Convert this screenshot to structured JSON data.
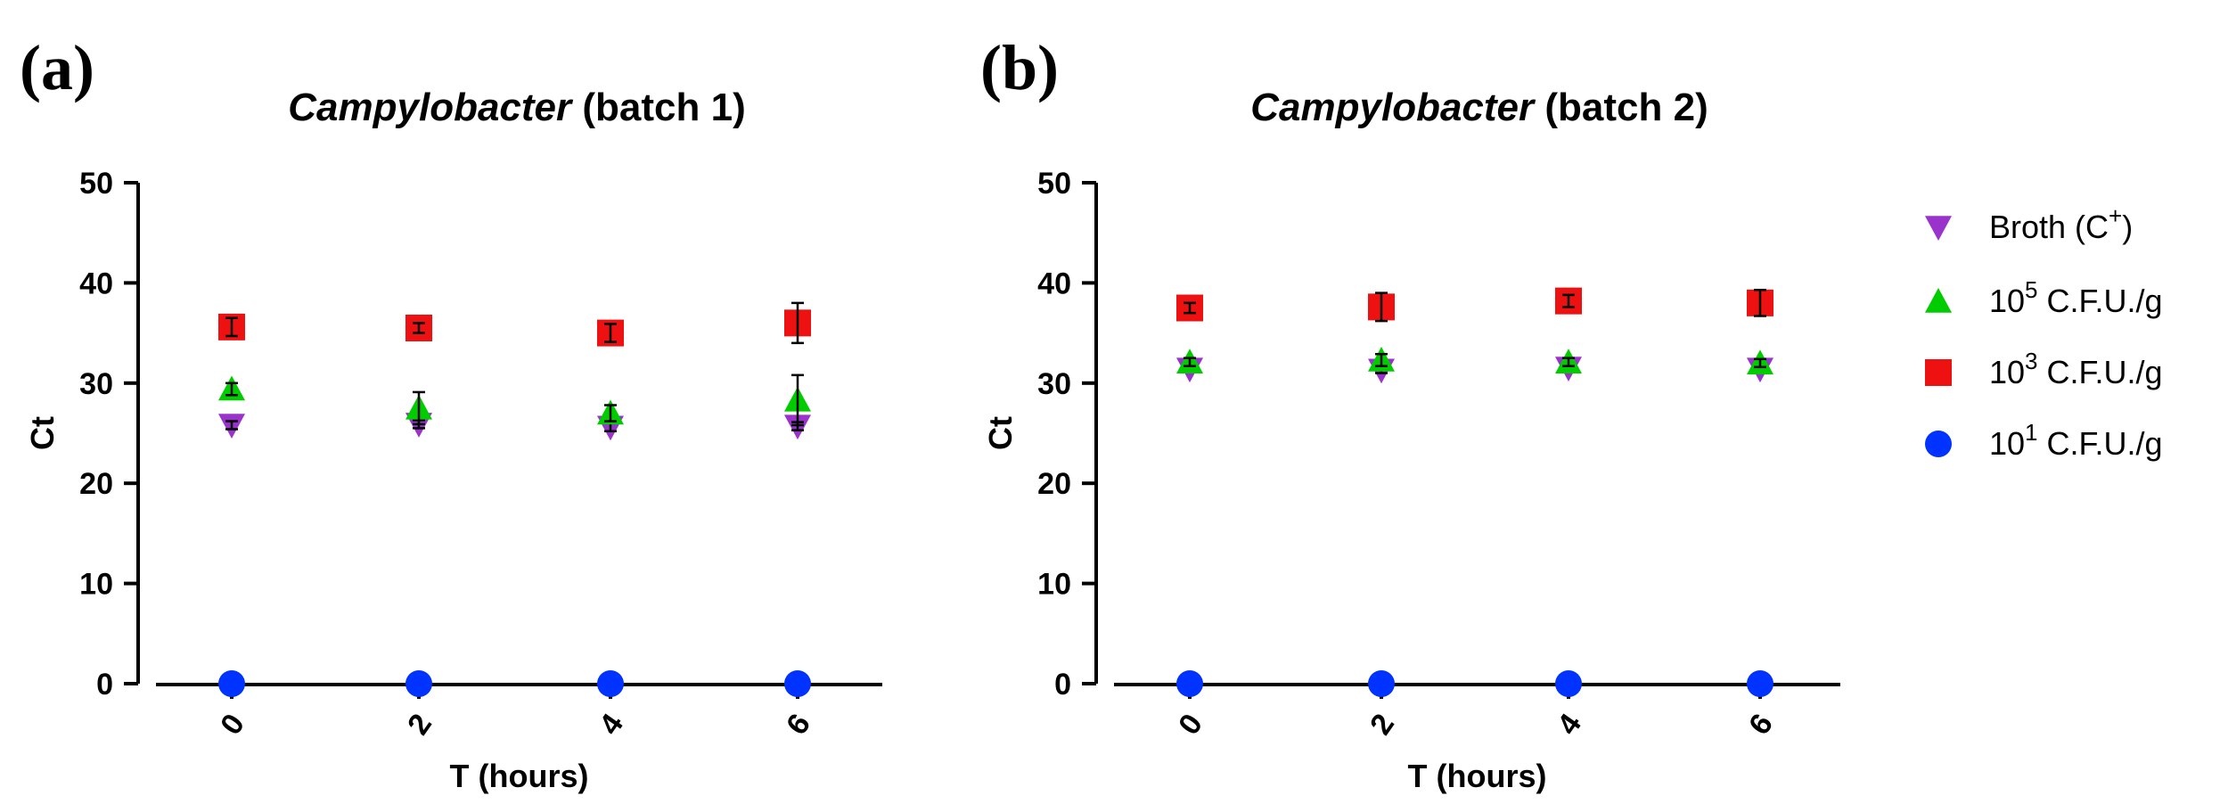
{
  "figure": {
    "legend": [
      {
        "label": "Broth (C",
        "sup": "+",
        "suffix": ")",
        "sup_first": false,
        "color": "#9933CC",
        "marker": "triangle-down",
        "key": "broth"
      },
      {
        "label": "10",
        "sup": "5",
        "suffix": " C.F.U./g",
        "sup_first": false,
        "color": "#00CC00",
        "marker": "triangle-up",
        "key": "cfu5"
      },
      {
        "label": "10",
        "sup": "3",
        "suffix": " C.F.U./g",
        "sup_first": false,
        "color": "#EE1111",
        "marker": "square",
        "key": "cfu3"
      },
      {
        "label": "10",
        "sup": "1",
        "suffix": " C.F.U./g",
        "sup_first": false,
        "color": "#0033FF",
        "marker": "circle",
        "key": "cfu1"
      }
    ]
  },
  "chart_data": [
    {
      "type": "scatter",
      "panel_label": "(a)",
      "title_italic": "Campylobacter",
      "title_rest": " (batch 1)",
      "xlabel": "T (hours)",
      "ylabel": "Ct",
      "ylim": [
        0,
        50
      ],
      "yticks": [
        0,
        10,
        20,
        30,
        40,
        50
      ],
      "categories": [
        "0",
        "2",
        "4",
        "6"
      ],
      "series": [
        {
          "key": "broth",
          "name": "Broth (C+)",
          "values": [
            25.8,
            25.9,
            25.6,
            25.7
          ],
          "errors": [
            0.4,
            0.4,
            0.4,
            0.4
          ]
        },
        {
          "key": "cfu5",
          "name": "10^5 C.F.U./g",
          "values": [
            29.4,
            27.5,
            27.0,
            28.3
          ],
          "errors": [
            0.6,
            1.6,
            0.8,
            2.5
          ]
        },
        {
          "key": "cfu3",
          "name": "10^3 C.F.U./g",
          "values": [
            35.6,
            35.5,
            35.0,
            36.0
          ],
          "errors": [
            0.9,
            0.5,
            0.9,
            2.0
          ]
        },
        {
          "key": "cfu1",
          "name": "10^1 C.F.U./g",
          "values": [
            0,
            0,
            0,
            0
          ],
          "errors": [
            0,
            0,
            0,
            0
          ]
        }
      ]
    },
    {
      "type": "scatter",
      "panel_label": "(b)",
      "title_italic": "Campylobacter",
      "title_rest": " (batch 2)",
      "xlabel": "T (hours)",
      "ylabel": "Ct",
      "ylim": [
        0,
        50
      ],
      "yticks": [
        0,
        10,
        20,
        30,
        40,
        50
      ],
      "categories": [
        "0",
        "2",
        "4",
        "6"
      ],
      "series": [
        {
          "key": "broth",
          "name": "Broth (C+)",
          "values": [
            31.4,
            31.3,
            31.5,
            31.4
          ],
          "errors": [
            0.3,
            0.3,
            0.3,
            0.3
          ]
        },
        {
          "key": "cfu5",
          "name": "10^5 C.F.U./g",
          "values": [
            32.1,
            32.3,
            32.1,
            32.0
          ],
          "errors": [
            0.4,
            0.6,
            0.4,
            0.4
          ]
        },
        {
          "key": "cfu3",
          "name": "10^3 C.F.U./g",
          "values": [
            37.5,
            37.6,
            38.2,
            38.0
          ],
          "errors": [
            0.5,
            1.4,
            0.6,
            1.3
          ]
        },
        {
          "key": "cfu1",
          "name": "10^1 C.F.U./g",
          "values": [
            0,
            0,
            0,
            0
          ],
          "errors": [
            0,
            0,
            0,
            0
          ]
        }
      ]
    }
  ]
}
